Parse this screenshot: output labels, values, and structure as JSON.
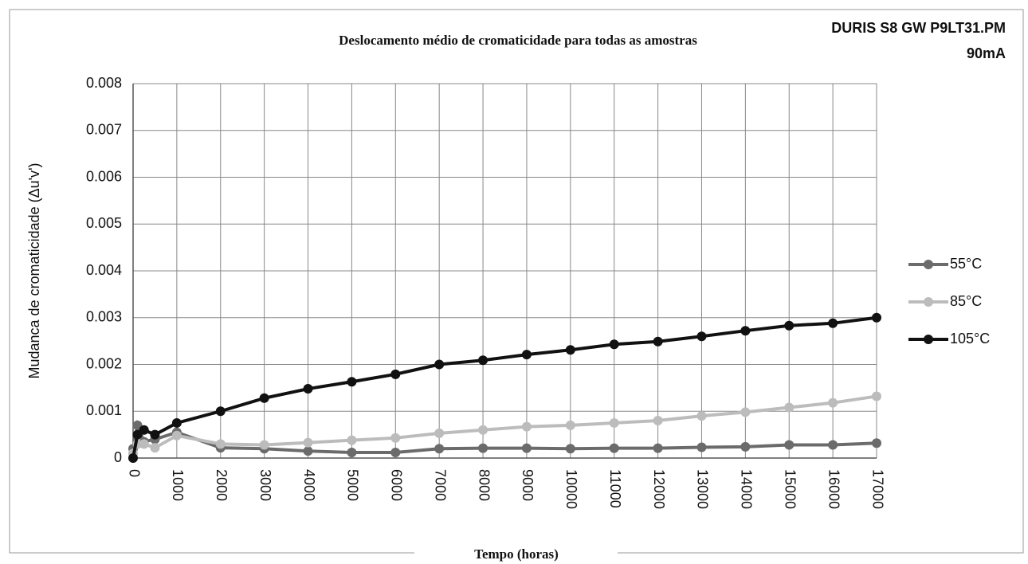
{
  "chart_data": {
    "type": "line",
    "title": "Deslocamento médio de cromaticidade para todas as amostras",
    "annotations": [
      "DURIS S8 GW P9LT31.PM",
      "90mA"
    ],
    "x_label": "Tempo (horas)",
    "y_label": "Mudanca de cromaticidade (Δu'v')",
    "x": [
      0,
      100,
      250,
      500,
      1000,
      2000,
      3000,
      4000,
      5000,
      6000,
      7000,
      8000,
      9000,
      10000,
      11000,
      12000,
      13000,
      14000,
      15000,
      16000,
      17000
    ],
    "series": [
      {
        "name": "55°C",
        "color": "#6b6b6b",
        "values": [
          0.0002,
          0.0007,
          0.00035,
          0.0004,
          0.00055,
          0.00022,
          0.0002,
          0.00015,
          0.00012,
          0.00012,
          0.0002,
          0.00021,
          0.00021,
          0.0002,
          0.00021,
          0.00021,
          0.00023,
          0.00024,
          0.00028,
          0.00028,
          0.00032
        ]
      },
      {
        "name": "85°C",
        "color": "#bcbcbc",
        "values": [
          0.0001,
          0.0003,
          0.0003,
          0.00022,
          0.00048,
          0.0003,
          0.00028,
          0.00033,
          0.00038,
          0.00043,
          0.00053,
          0.0006,
          0.00067,
          0.0007,
          0.00075,
          0.0008,
          0.0009,
          0.00098,
          0.00108,
          0.00118,
          0.00132
        ]
      },
      {
        "name": "105°C",
        "color": "#111111",
        "values": [
          0,
          0.0005,
          0.0006,
          0.0005,
          0.00075,
          0.001,
          0.00128,
          0.00148,
          0.00163,
          0.00179,
          0.002,
          0.00209,
          0.00221,
          0.00231,
          0.00243,
          0.00249,
          0.0026,
          0.00272,
          0.00283,
          0.00288,
          0.003
        ]
      }
    ],
    "xlim": [
      0,
      17000
    ],
    "xticks": [
      0,
      1000,
      2000,
      3000,
      4000,
      5000,
      6000,
      7000,
      8000,
      9000,
      10000,
      11000,
      12000,
      13000,
      14000,
      15000,
      16000,
      17000
    ],
    "ylim": [
      0,
      0.008
    ],
    "yticks": [
      0,
      0.001,
      0.002,
      0.003,
      0.004,
      0.005,
      0.006,
      0.007,
      0.008
    ],
    "grid": true,
    "legend": "right"
  }
}
